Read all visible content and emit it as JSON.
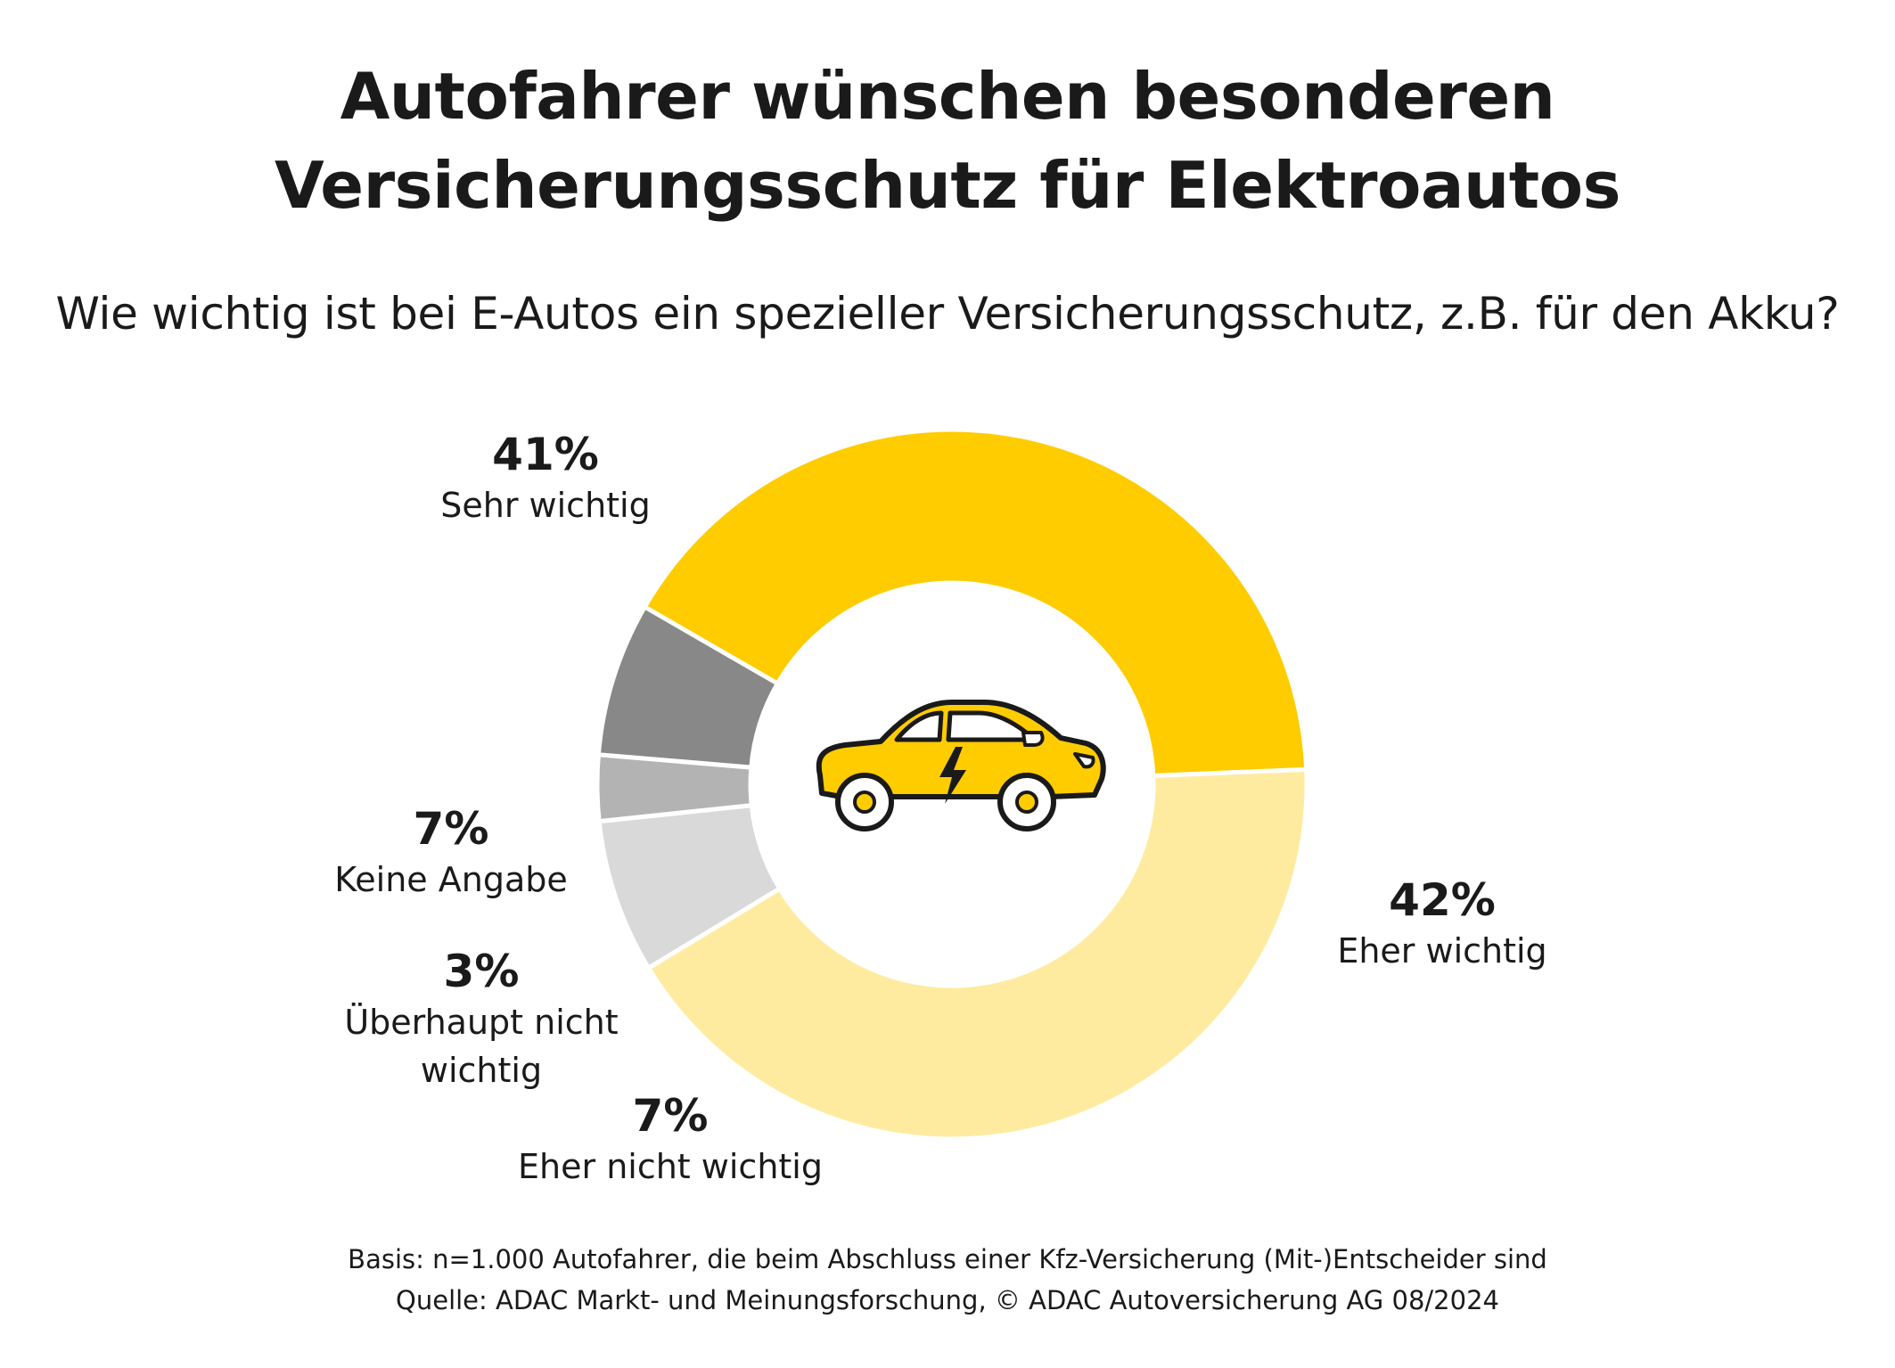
{
  "title_line1": "Autofahrer wünschen besonderen",
  "title_line2": "Versicherungsschutz für Elektroautos",
  "question": "Wie wichtig ist bei E-Autos ein spezieller Versicherungsschutz, z.B. für den Akku?",
  "chart_data": {
    "type": "pie",
    "style": "donut",
    "title": "Autofahrer wünschen besonderen Versicherungsschutz für Elektroautos",
    "subtitle": "Wie wichtig ist bei E-Autos ein spezieller Versicherungsschutz, z.B. für den Akku?",
    "unit": "%",
    "slices": [
      {
        "label": "Sehr wichtig",
        "value": 41,
        "display": "41%",
        "color": "#FFCC00"
      },
      {
        "label": "Eher wichtig",
        "value": 42,
        "display": "42%",
        "color": "#FFEBA0"
      },
      {
        "label": "Eher nicht wichtig",
        "value": 7,
        "display": "7%",
        "color": "#D9D9D9"
      },
      {
        "label": "Überhaupt nicht wichtig",
        "label_lines": [
          "Überhaupt nicht",
          "wichtig"
        ],
        "value": 3,
        "display": "3%",
        "color": "#B3B3B3"
      },
      {
        "label": "Keine Angabe",
        "value": 7,
        "display": "7%",
        "color": "#888888"
      }
    ],
    "center_icon": "electric-car-icon"
  },
  "footer_line1": "Basis: n=1.000 Autofahrer, die beim Abschluss einer Kfz-Versicherung (Mit-)Entscheider sind",
  "footer_line2": "Quelle: ADAC Markt- und Meinungsforschung, © ADAC Autoversicherung AG 08/2024",
  "colors": {
    "car_body": "#FFCC00",
    "car_outline": "#1a1a1a",
    "separator": "#ffffff",
    "text": "#1a1a1a"
  }
}
